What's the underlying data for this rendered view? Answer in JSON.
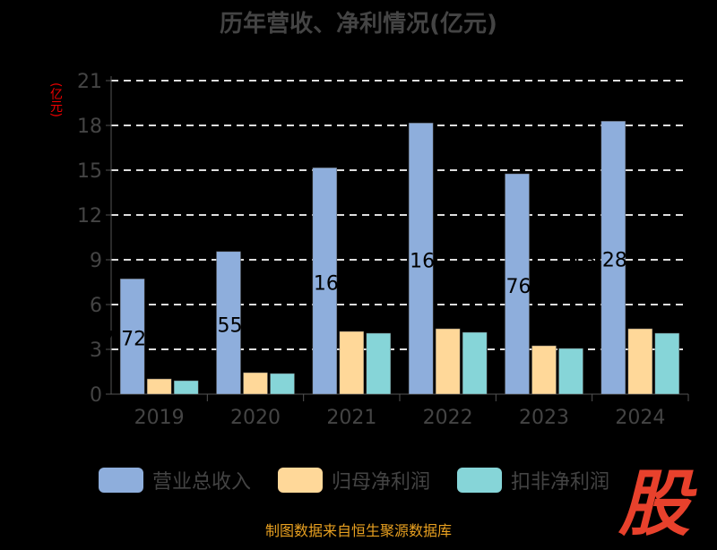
{
  "chart_data": {
    "type": "bar",
    "title": "历年营收、净利情况(亿元)",
    "ylabel": "(亿元)",
    "categories": [
      "2019",
      "2020",
      "2021",
      "2022",
      "2023",
      "2024"
    ],
    "ylim": [
      0,
      21
    ],
    "yticks": [
      0,
      3,
      6,
      9,
      12,
      15,
      18,
      21
    ],
    "grid": true,
    "legend_position": "bottom",
    "series": [
      {
        "name": "营业总收入",
        "color": "#8eaedc",
        "values": [
          7.72,
          9.55,
          15.16,
          18.16,
          14.76,
          18.28
        ],
        "labels": [
          "7.72",
          "9.55",
          "15.16",
          "18.16",
          "14.76",
          "18.28"
        ]
      },
      {
        "name": "归母净利润",
        "color": "#ffd899",
        "values": [
          1.02,
          1.44,
          4.2,
          4.38,
          3.24,
          4.38
        ]
      },
      {
        "name": "扣非净利润",
        "color": "#86d5d8",
        "values": [
          0.9,
          1.38,
          4.08,
          4.14,
          3.06,
          4.08
        ]
      }
    ]
  },
  "footer": "制图数据来自恒生聚源数据库",
  "watermark": "股"
}
